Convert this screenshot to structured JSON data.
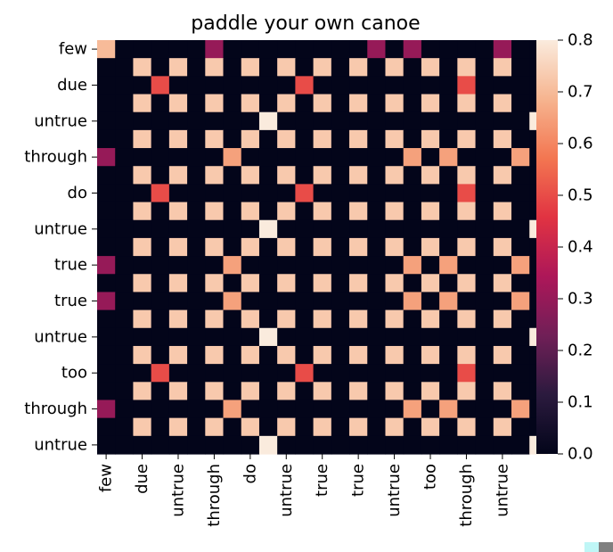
{
  "chart_data": {
    "type": "heatmap",
    "title": "paddle your own canoe",
    "row_labels": [
      "few",
      "due",
      "untrue",
      "through",
      "do",
      "untrue",
      "true",
      "true",
      "untrue",
      "too",
      "through",
      "untrue"
    ],
    "col_labels": [
      "few",
      "due",
      "untrue",
      "through",
      "do",
      "untrue",
      "true",
      "true",
      "untrue",
      "too",
      "through",
      "untrue"
    ],
    "n_cells": 23,
    "colorbar": {
      "min": 0.0,
      "max": 0.8,
      "ticks": [
        "0.0",
        "0.1",
        "0.2",
        "0.3",
        "0.4",
        "0.5",
        "0.6",
        "0.7",
        "0.8"
      ]
    },
    "colormap": "rocket",
    "values": [
      [
        0.7,
        0,
        0,
        0,
        0,
        0,
        0.3,
        0,
        0,
        0,
        0,
        0,
        0,
        0,
        0,
        0.3,
        0,
        0.3,
        0,
        0,
        0,
        0,
        0.3,
        0,
        0
      ],
      [
        0,
        0,
        0.73,
        0,
        0.73,
        0,
        0.73,
        0,
        0.73,
        0,
        0.73,
        0,
        0.73,
        0,
        0.73,
        0,
        0.73,
        0,
        0.73,
        0,
        0.73,
        0,
        0.73,
        0,
        0
      ],
      [
        0,
        0,
        0,
        0.5,
        0,
        0,
        0,
        0,
        0,
        0,
        0,
        0.5,
        0,
        0,
        0,
        0,
        0,
        0,
        0,
        0,
        0.5,
        0,
        0,
        0,
        0
      ],
      [
        0,
        0,
        0.73,
        0,
        0.73,
        0,
        0.73,
        0,
        0.73,
        0,
        0.73,
        0,
        0.73,
        0,
        0.73,
        0,
        0.73,
        0,
        0.73,
        0,
        0.73,
        0,
        0.73,
        0,
        0
      ],
      [
        0,
        0,
        0,
        0,
        0,
        0,
        0,
        0,
        0,
        0.8,
        0,
        0,
        0,
        0,
        0,
        0,
        0,
        0,
        0,
        0,
        0,
        0,
        0,
        0,
        0.8
      ],
      [
        0,
        0,
        0.73,
        0,
        0.73,
        0,
        0.73,
        0,
        0.73,
        0,
        0.73,
        0,
        0.73,
        0,
        0.73,
        0,
        0.73,
        0,
        0.73,
        0,
        0.73,
        0,
        0.73,
        0,
        0
      ],
      [
        0.3,
        0,
        0,
        0,
        0,
        0,
        0,
        0.65,
        0,
        0,
        0,
        0,
        0,
        0,
        0,
        0,
        0,
        0.65,
        0,
        0.65,
        0,
        0,
        0,
        0.65,
        0
      ],
      [
        0,
        0,
        0.73,
        0,
        0.73,
        0,
        0.73,
        0,
        0.73,
        0,
        0.73,
        0,
        0.73,
        0,
        0.73,
        0,
        0.73,
        0,
        0.73,
        0,
        0.73,
        0,
        0.73,
        0,
        0
      ],
      [
        0,
        0,
        0,
        0.5,
        0,
        0,
        0,
        0,
        0,
        0,
        0,
        0.5,
        0,
        0,
        0,
        0,
        0,
        0,
        0,
        0,
        0.5,
        0,
        0,
        0,
        0
      ],
      [
        0,
        0,
        0.73,
        0,
        0.73,
        0,
        0.73,
        0,
        0.73,
        0,
        0.73,
        0,
        0.73,
        0,
        0.73,
        0,
        0.73,
        0,
        0.73,
        0,
        0.73,
        0,
        0.73,
        0,
        0
      ],
      [
        0,
        0,
        0,
        0,
        0,
        0,
        0,
        0,
        0,
        0.8,
        0,
        0,
        0,
        0,
        0,
        0,
        0,
        0,
        0,
        0,
        0,
        0,
        0,
        0,
        0.8
      ],
      [
        0,
        0,
        0.73,
        0,
        0.73,
        0,
        0.73,
        0,
        0.73,
        0,
        0.73,
        0,
        0.73,
        0,
        0.73,
        0,
        0.73,
        0,
        0.73,
        0,
        0.73,
        0,
        0.73,
        0,
        0
      ],
      [
        0.3,
        0,
        0,
        0,
        0,
        0,
        0,
        0.65,
        0,
        0,
        0,
        0,
        0,
        0,
        0,
        0,
        0,
        0.65,
        0,
        0.65,
        0,
        0,
        0,
        0.65,
        0
      ],
      [
        0,
        0,
        0.73,
        0,
        0.73,
        0,
        0.73,
        0,
        0.73,
        0,
        0.73,
        0,
        0.73,
        0,
        0.73,
        0,
        0.73,
        0,
        0.73,
        0,
        0.73,
        0,
        0.73,
        0,
        0
      ],
      [
        0.3,
        0,
        0,
        0,
        0,
        0,
        0,
        0.65,
        0,
        0,
        0,
        0,
        0,
        0,
        0,
        0,
        0,
        0.65,
        0,
        0.65,
        0,
        0,
        0,
        0.65,
        0
      ],
      [
        0,
        0,
        0.73,
        0,
        0.73,
        0,
        0.73,
        0,
        0.73,
        0,
        0.73,
        0,
        0.73,
        0,
        0.73,
        0,
        0.73,
        0,
        0.73,
        0,
        0.73,
        0,
        0.73,
        0,
        0
      ],
      [
        0,
        0,
        0,
        0,
        0,
        0,
        0,
        0,
        0,
        0.8,
        0,
        0,
        0,
        0,
        0,
        0,
        0,
        0,
        0,
        0,
        0,
        0,
        0,
        0,
        0.8
      ],
      [
        0,
        0,
        0.73,
        0,
        0.73,
        0,
        0.73,
        0,
        0.73,
        0,
        0.73,
        0,
        0.73,
        0,
        0.73,
        0,
        0.73,
        0,
        0.73,
        0,
        0.73,
        0,
        0.73,
        0,
        0
      ],
      [
        0,
        0,
        0,
        0.5,
        0,
        0,
        0,
        0,
        0,
        0,
        0,
        0.5,
        0,
        0,
        0,
        0,
        0,
        0,
        0,
        0,
        0.5,
        0,
        0,
        0,
        0
      ],
      [
        0,
        0,
        0.73,
        0,
        0.73,
        0,
        0.73,
        0,
        0.73,
        0,
        0.73,
        0,
        0.73,
        0,
        0.73,
        0,
        0.73,
        0,
        0.73,
        0,
        0.73,
        0,
        0.73,
        0,
        0
      ],
      [
        0.3,
        0,
        0,
        0,
        0,
        0,
        0,
        0.65,
        0,
        0,
        0,
        0,
        0,
        0,
        0,
        0,
        0,
        0.65,
        0,
        0.65,
        0,
        0,
        0,
        0.65,
        0
      ],
      [
        0,
        0,
        0.73,
        0,
        0.73,
        0,
        0.73,
        0,
        0.73,
        0,
        0.73,
        0,
        0.73,
        0,
        0.73,
        0,
        0.73,
        0,
        0.73,
        0,
        0.73,
        0,
        0.73,
        0,
        0
      ],
      [
        0,
        0,
        0,
        0,
        0,
        0,
        0,
        0,
        0,
        0.8,
        0,
        0,
        0,
        0,
        0,
        0,
        0,
        0,
        0,
        0,
        0,
        0,
        0,
        0,
        0.8
      ]
    ]
  },
  "colors": {
    "stops": [
      "#03051a",
      "#2b1a3e",
      "#701f57",
      "#ad1759",
      "#e13342",
      "#f37651",
      "#f6b48f",
      "#faebdd"
    ],
    "corner_left": "#bff6f6",
    "corner_right": "#808080"
  }
}
